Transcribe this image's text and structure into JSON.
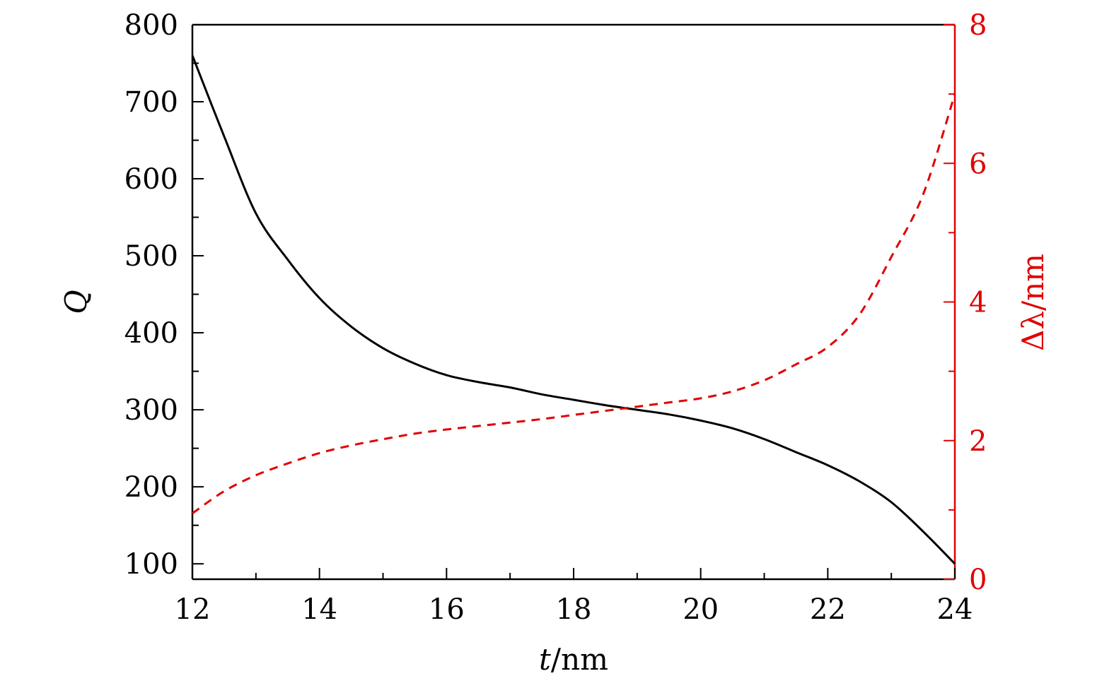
{
  "chart_data": {
    "type": "line",
    "xlabel": "t/nm",
    "ylabel_left": "Q",
    "ylabel_right": "Δλ/nm",
    "xlim": [
      12,
      24
    ],
    "ylim_left": [
      80,
      800
    ],
    "ylim_right": [
      0,
      8
    ],
    "x_ticks": [
      12,
      14,
      16,
      18,
      20,
      22,
      24
    ],
    "y_left_ticks": [
      100,
      200,
      300,
      400,
      500,
      600,
      700,
      800
    ],
    "y_right_ticks": [
      0,
      2,
      4,
      6,
      8
    ],
    "grid": false,
    "colors": {
      "left_axis": "#000000",
      "right_axis": "#e00000"
    },
    "series": [
      {
        "axis": "left",
        "style": "solid",
        "color": "#000000",
        "x": [
          12,
          12.5,
          13,
          13.5,
          14,
          14.5,
          15,
          15.5,
          16,
          16.5,
          17,
          17.5,
          18,
          18.5,
          19,
          19.5,
          20,
          20.5,
          21,
          21.5,
          22,
          22.5,
          23,
          23.5,
          24
        ],
        "y": [
          760,
          655,
          555,
          495,
          445,
          408,
          380,
          360,
          345,
          336,
          329,
          320,
          313,
          306,
          300,
          294,
          286,
          276,
          262,
          245,
          228,
          207,
          180,
          142,
          100
        ]
      },
      {
        "axis": "right",
        "style": "dashed",
        "color": "#e00000",
        "x": [
          12,
          12.5,
          13,
          13.5,
          14,
          14.5,
          15,
          15.5,
          16,
          16.5,
          17,
          17.5,
          18,
          18.5,
          19,
          19.5,
          20,
          20.5,
          21,
          21.5,
          22,
          22.5,
          23,
          23.5,
          24
        ],
        "y": [
          0.95,
          1.27,
          1.5,
          1.67,
          1.82,
          1.93,
          2.02,
          2.1,
          2.16,
          2.21,
          2.26,
          2.31,
          2.37,
          2.43,
          2.49,
          2.55,
          2.61,
          2.71,
          2.87,
          3.1,
          3.35,
          3.82,
          4.65,
          5.55,
          7.0
        ]
      }
    ]
  }
}
